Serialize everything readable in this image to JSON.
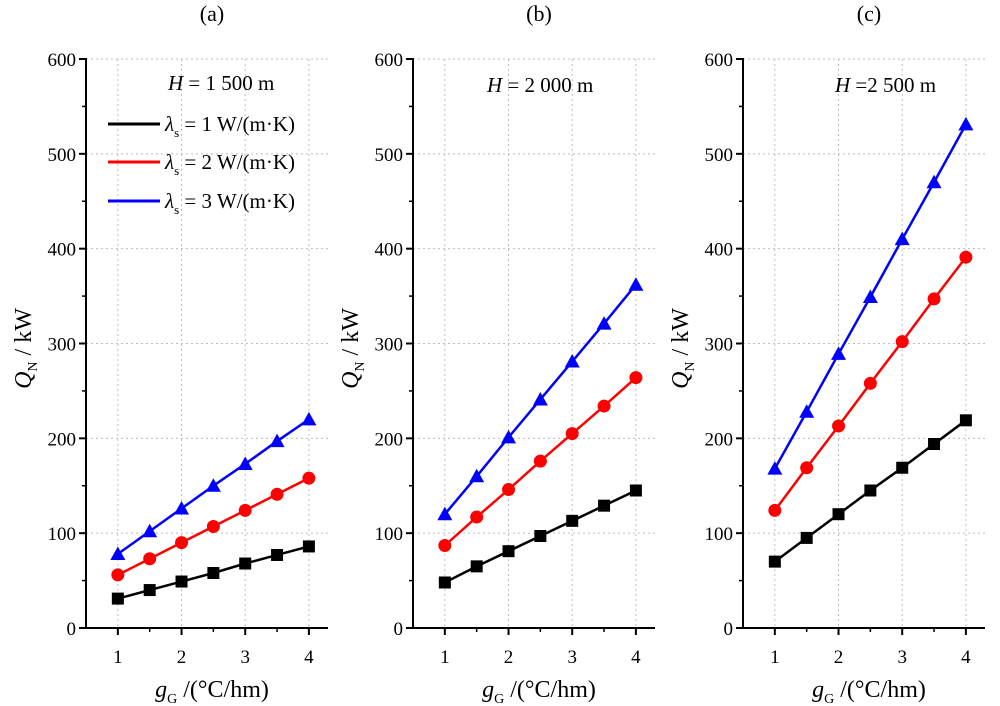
{
  "figure": {
    "series_colors": [
      "#000000",
      "#ff0000",
      "#0000ff"
    ],
    "marker_shapes": [
      "square",
      "circle",
      "triangle"
    ]
  },
  "chart_data": [
    {
      "type": "line",
      "panel_label": "(a)",
      "annotation": {
        "var": "H",
        "text": " = 1 500 m"
      },
      "ylabel": {
        "main": "Q",
        "sub": "N",
        "rest": " / kW"
      },
      "xlabel": {
        "main": "g",
        "sub": "G",
        "rest": " /(°C/hm)"
      },
      "xlim": [
        0.5,
        4.3
      ],
      "ylim": [
        0,
        600
      ],
      "xticks": [
        "1",
        "2",
        "3",
        "4"
      ],
      "yticks": [
        "0",
        "100",
        "200",
        "300",
        "400",
        "500",
        "600"
      ],
      "grid": true,
      "legend": {
        "placement": "top-left",
        "entries": [
          {
            "sym": "λ",
            "sub": "s",
            "text": " = 1 W/(m·K)"
          },
          {
            "sym": "λ",
            "sub": "s",
            "text": " = 2 W/(m·K)"
          },
          {
            "sym": "λ",
            "sub": "s",
            "text": " = 3 W/(m·K)"
          }
        ]
      },
      "x": [
        1,
        1.5,
        2,
        2.5,
        3,
        3.5,
        4
      ],
      "series": [
        {
          "values": [
            31,
            40,
            49,
            58,
            68,
            77,
            86
          ]
        },
        {
          "values": [
            56,
            73,
            90,
            107,
            124,
            141,
            158
          ]
        },
        {
          "values": [
            78,
            102,
            126,
            150,
            173,
            197,
            220
          ]
        }
      ]
    },
    {
      "type": "line",
      "panel_label": "(b)",
      "annotation": {
        "var": "H",
        "text": " = 2 000 m"
      },
      "ylabel": {
        "main": "Q",
        "sub": "N",
        "rest": " / kW"
      },
      "xlabel": {
        "main": "g",
        "sub": "G",
        "rest": " /(°C/hm)"
      },
      "xlim": [
        0.5,
        4.3
      ],
      "ylim": [
        0,
        600
      ],
      "xticks": [
        "1",
        "2",
        "3",
        "4"
      ],
      "yticks": [
        "0",
        "100",
        "200",
        "300",
        "400",
        "500",
        "600"
      ],
      "grid": true,
      "x": [
        1,
        1.5,
        2,
        2.5,
        3,
        3.5,
        4
      ],
      "series": [
        {
          "values": [
            48,
            65,
            81,
            97,
            113,
            129,
            145
          ]
        },
        {
          "values": [
            87,
            117,
            146,
            176,
            205,
            234,
            264
          ]
        },
        {
          "values": [
            120,
            160,
            201,
            241,
            281,
            321,
            362
          ]
        }
      ]
    },
    {
      "type": "line",
      "panel_label": "(c)",
      "annotation": {
        "var": "H",
        "text": " =2 500 m"
      },
      "ylabel": {
        "main": "Q",
        "sub": "N",
        "rest": " / kW"
      },
      "xlabel": {
        "main": "g",
        "sub": "G",
        "rest": " /(°C/hm)"
      },
      "xlim": [
        0.5,
        4.3
      ],
      "ylim": [
        0,
        600
      ],
      "xticks": [
        "1",
        "2",
        "3",
        "4"
      ],
      "yticks": [
        "0",
        "100",
        "200",
        "300",
        "400",
        "500",
        "600"
      ],
      "grid": true,
      "x": [
        1,
        1.5,
        2,
        2.5,
        3,
        3.5,
        4
      ],
      "series": [
        {
          "values": [
            70,
            95,
            120,
            145,
            169,
            194,
            219
          ]
        },
        {
          "values": [
            124,
            169,
            213,
            258,
            302,
            347,
            391
          ]
        },
        {
          "values": [
            168,
            228,
            289,
            349,
            410,
            470,
            531
          ]
        }
      ]
    }
  ]
}
